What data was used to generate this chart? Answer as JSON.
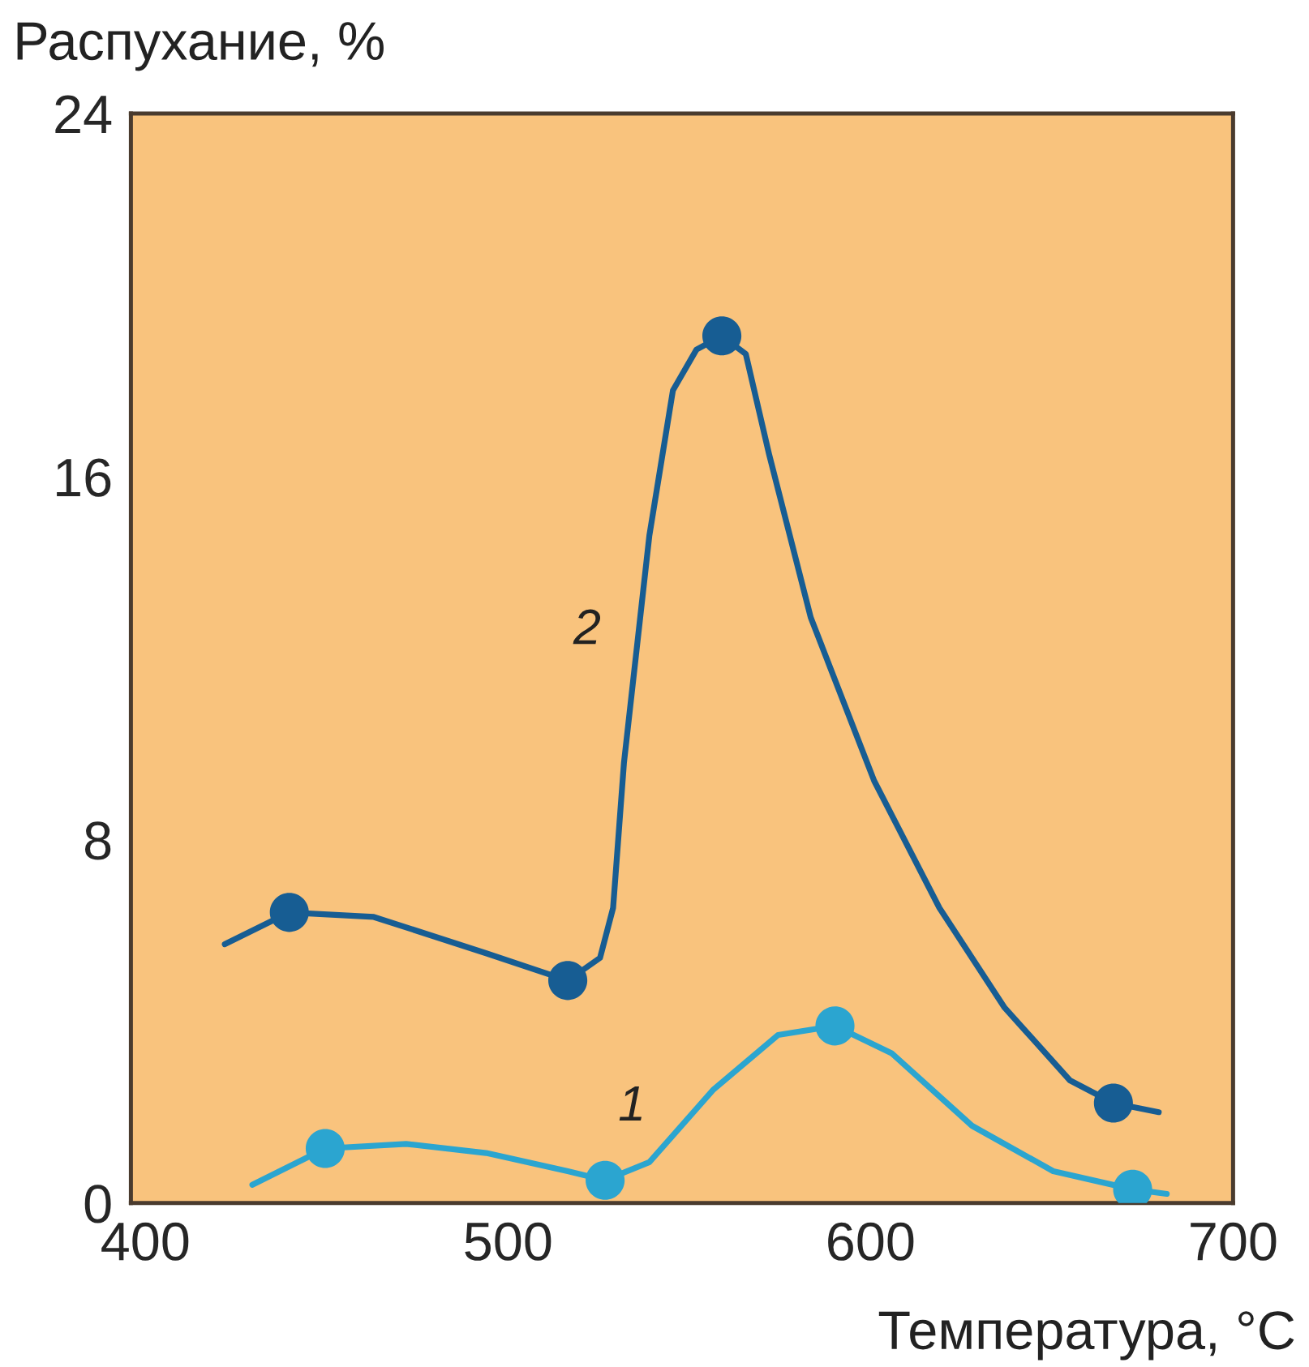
{
  "chart_data": {
    "type": "line",
    "ylabel": "Распухание, %",
    "xlabel": "Температура, °C",
    "xlim": [
      396,
      700
    ],
    "xticks": [
      400,
      500,
      600,
      700
    ],
    "ylim": [
      0,
      24
    ],
    "yticks": [
      0,
      8,
      16,
      24
    ],
    "grid": false,
    "legend": false,
    "series": [
      {
        "name": "2",
        "color": "#175d93",
        "marker": "none",
        "x": [
          421.9,
          439.7,
          463,
          494,
          516.5,
          525.4,
          529,
          532,
          539,
          545.5,
          552,
          559,
          565.6,
          572,
          583.5,
          601,
          619,
          637,
          655,
          667,
          679.5
        ],
        "values": [
          5.7,
          6.4,
          6.3,
          5.5,
          4.9,
          5.4,
          6.5,
          9.7,
          14.7,
          17.9,
          18.8,
          19.1,
          18.7,
          16.5,
          12.9,
          9.3,
          6.5,
          4.3,
          2.7,
          2.2,
          2.0
        ]
      },
      {
        "name": "1",
        "color": "#2ba5d0",
        "marker": "none",
        "x": [
          429.5,
          449.6,
          471.9,
          494,
          516.5,
          526.8,
          539,
          556.7,
          574.5,
          590.2,
          605.8,
          628,
          650.4,
          672.3,
          681.7
        ],
        "values": [
          0.4,
          1.2,
          1.3,
          1.1,
          0.7,
          0.5,
          0.9,
          2.5,
          3.7,
          3.9,
          3.3,
          1.7,
          0.7,
          0.3,
          0.2
        ]
      },
      {
        "type": "scatter",
        "color": "#175d93",
        "marker": "circle",
        "x": [
          439.7,
          516.5,
          559,
          667
        ],
        "values": [
          6.4,
          4.9,
          19.1,
          2.2
        ]
      },
      {
        "type": "scatter",
        "color": "#2ba5d0",
        "marker": "circle",
        "x": [
          449.6,
          526.8,
          590.2,
          672.3
        ],
        "values": [
          1.2,
          0.5,
          3.9,
          0.3
        ]
      }
    ]
  }
}
